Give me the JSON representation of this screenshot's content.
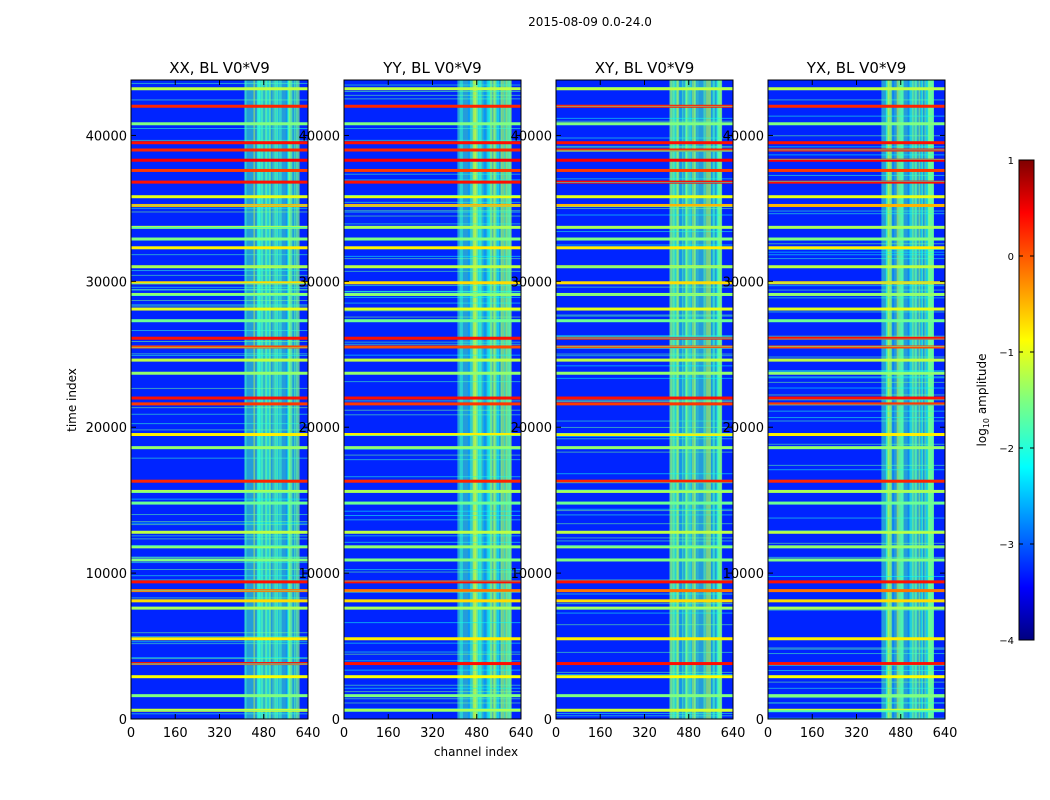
{
  "chart_data": {
    "type": "heatmap",
    "suptitle": "2015-08-09 0.0-24.0",
    "xlabel": "channel index",
    "ylabel": "time index",
    "xlim": [
      0,
      640
    ],
    "ylim": [
      0,
      43800
    ],
    "xticks": [
      0,
      160,
      320,
      480,
      640
    ],
    "yticks": [
      0,
      10000,
      20000,
      30000,
      40000
    ],
    "xtick_labels": [
      "0",
      "160",
      "320",
      "480",
      "640"
    ],
    "ytick_labels": [
      "0",
      "10000",
      "20000",
      "30000",
      "40000"
    ],
    "panels": [
      {
        "title": "XX, BL V0*V9"
      },
      {
        "title": "YY, BL V0*V9"
      },
      {
        "title": "XY, BL V0*V9"
      },
      {
        "title": "YX, BL V0*V9"
      }
    ],
    "colormap": "jet",
    "colorbar": {
      "label_main": "log",
      "label_sub": "10",
      "label_rest": " amplitude",
      "vmin": -4,
      "vmax": 1,
      "ticks": [
        1,
        0,
        -1,
        -2,
        -3,
        -4
      ],
      "tick_labels": [
        "1",
        "0",
        "−1",
        "−2",
        "−3",
        "−4"
      ]
    },
    "background_log_amplitude": -3.2,
    "active_channel_band": [
      410,
      600
    ],
    "active_band_log_amplitude": -1.8,
    "horizontal_bands": [
      {
        "time": 43200,
        "level": -1.2
      },
      {
        "time": 42000,
        "level": 0.2
      },
      {
        "time": 40800,
        "level": -1.5
      },
      {
        "time": 39500,
        "level": 0.3
      },
      {
        "time": 39000,
        "level": 0.2
      },
      {
        "time": 38300,
        "level": 0.4
      },
      {
        "time": 37600,
        "level": 0.1
      },
      {
        "time": 36800,
        "level": 0.3
      },
      {
        "time": 35800,
        "level": -1.0
      },
      {
        "time": 35200,
        "level": -0.5
      },
      {
        "time": 33700,
        "level": -1.3
      },
      {
        "time": 32900,
        "level": -1.5
      },
      {
        "time": 32300,
        "level": -0.8
      },
      {
        "time": 31000,
        "level": -1.2
      },
      {
        "time": 29900,
        "level": -0.7
      },
      {
        "time": 29100,
        "level": -1.4
      },
      {
        "time": 28100,
        "level": -1.0
      },
      {
        "time": 27300,
        "level": -1.6
      },
      {
        "time": 26100,
        "level": 0.3
      },
      {
        "time": 25500,
        "level": 0.0
      },
      {
        "time": 24600,
        "level": -1.2
      },
      {
        "time": 23700,
        "level": -1.4
      },
      {
        "time": 22000,
        "level": 0.3
      },
      {
        "time": 21600,
        "level": 0.1
      },
      {
        "time": 19500,
        "level": -0.8
      },
      {
        "time": 18600,
        "level": -1.4
      },
      {
        "time": 16300,
        "level": 0.2
      },
      {
        "time": 15600,
        "level": -1.3
      },
      {
        "time": 14800,
        "level": -1.6
      },
      {
        "time": 12800,
        "level": -1.2
      },
      {
        "time": 11800,
        "level": -1.4
      },
      {
        "time": 10900,
        "level": -1.5
      },
      {
        "time": 9400,
        "level": 0.3
      },
      {
        "time": 8800,
        "level": -0.2
      },
      {
        "time": 8100,
        "level": -0.7
      },
      {
        "time": 7600,
        "level": -1.3
      },
      {
        "time": 5500,
        "level": -0.8
      },
      {
        "time": 3800,
        "level": 0.3
      },
      {
        "time": 2900,
        "level": -0.9
      },
      {
        "time": 1600,
        "level": -1.5
      },
      {
        "time": 600,
        "level": -1.1
      }
    ]
  }
}
